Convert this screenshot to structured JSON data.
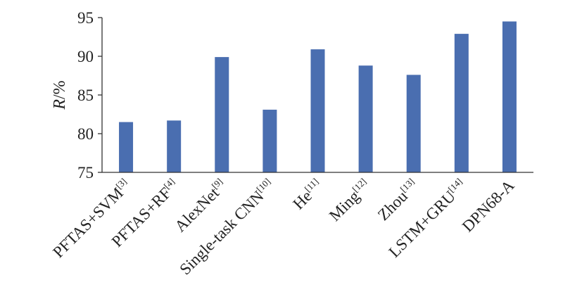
{
  "chart_data": {
    "type": "bar",
    "title": "",
    "xlabel": "",
    "ylabel": {
      "symbol": "R",
      "unit": "/%"
    },
    "ylim": [
      75,
      95
    ],
    "yticks": [
      "75",
      "80",
      "85",
      "90",
      "95"
    ],
    "grid": false,
    "bar_color": "#4a6eb0",
    "categories": [
      {
        "text": "PFTAS+SVM",
        "ref": "[3]"
      },
      {
        "text": "PFTAS+RF",
        "ref": "[4]"
      },
      {
        "text": "AlexNet",
        "ref": "[9]"
      },
      {
        "text": "Single-task CNN",
        "ref": "[10]"
      },
      {
        "text": "He",
        "ref": "[11]"
      },
      {
        "text": "Ming",
        "ref": "[12]"
      },
      {
        "text": "Zhou",
        "ref": "[13]"
      },
      {
        "text": "LSTM+GRU",
        "ref": "[14]"
      },
      {
        "text": "DPN68-A",
        "ref": ""
      }
    ],
    "values": [
      81.5,
      81.7,
      89.9,
      83.1,
      90.9,
      88.8,
      87.6,
      92.9,
      94.5
    ]
  }
}
